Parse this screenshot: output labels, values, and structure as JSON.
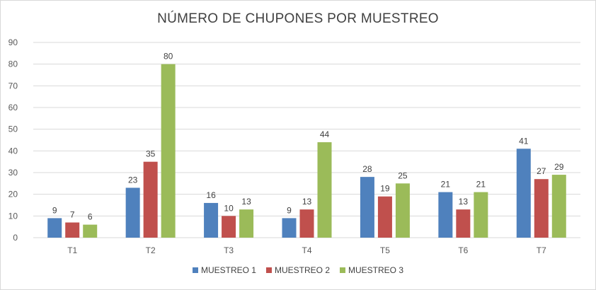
{
  "chart_data": {
    "type": "bar",
    "title": "NÚMERO DE CHUPONES POR MUESTREO",
    "xlabel": "",
    "ylabel": "",
    "ylim": [
      0,
      90
    ],
    "yticks": [
      "0",
      "10",
      "20",
      "30",
      "40",
      "50",
      "60",
      "70",
      "80",
      "90"
    ],
    "grid": true,
    "legend_position": "bottom",
    "categories": [
      "T1",
      "T2",
      "T3",
      "T4",
      "T5",
      "T6",
      "T7"
    ],
    "series": [
      {
        "name": "MUESTREO 1",
        "color": "#4f81bd",
        "values": [
          9,
          23,
          16,
          9,
          28,
          21,
          41
        ]
      },
      {
        "name": "MUESTREO 2",
        "color": "#c0504d",
        "values": [
          7,
          35,
          10,
          13,
          19,
          13,
          27
        ]
      },
      {
        "name": "MUESTREO 3",
        "color": "#9bbb59",
        "values": [
          6,
          80,
          13,
          44,
          25,
          21,
          29
        ]
      }
    ]
  }
}
